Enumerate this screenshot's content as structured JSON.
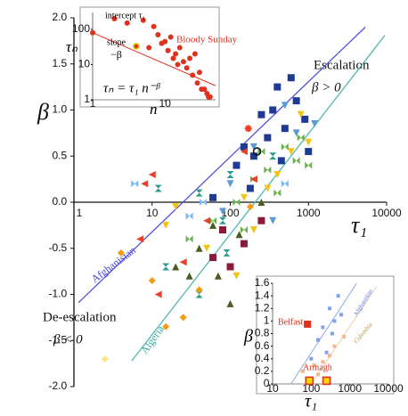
{
  "chart_data": [
    {
      "type": "scatter",
      "xscale": "log",
      "xlim": [
        1,
        10000
      ],
      "ylim": [
        -2,
        2
      ],
      "xticks": [
        1,
        10,
        100,
        1000,
        10000
      ],
      "yticks": [
        {
          "value": 2,
          "label": "2.0"
        },
        1.5,
        {
          "value": 1,
          "label": "1.0"
        },
        0.5,
        {
          "value": 0,
          "label": "0.0"
        },
        -0.5,
        {
          "value": -1,
          "label": "-1.0"
        },
        -1.5,
        {
          "value": -2,
          "label": "-2.0"
        }
      ],
      "x_label": "τ₁",
      "y_label": "β",
      "annotations": {
        "escalation": "Escalation",
        "beta_pos": "β > 0",
        "deescalation": "De-escalation",
        "beta_neg": "β < 0",
        "afghanistan": "Afghanistan",
        "algeria": "Algeria"
      },
      "lines": [
        {
          "color": "#5050d8",
          "x": [
            1.14,
            5350
          ],
          "values": [
            -1.09,
            1.9
          ]
        },
        {
          "color": "#4fb8b0",
          "x": [
            5.5,
            9500
          ],
          "values": [
            -1.72,
            1.81
          ]
        }
      ],
      "series": [
        {
          "marker": "square",
          "color": "#1f3a93",
          "x": [
            400,
            600,
            350,
            700,
            500,
            200,
            150,
            900,
            300,
            250,
            1000,
            120,
            450,
            180,
            60
          ],
          "values": [
            1.25,
            1.35,
            1.0,
            1.1,
            0.8,
            0.5,
            0.6,
            0.9,
            0.7,
            0.95,
            0.55,
            0.4,
            0.45,
            0.15,
            0.05
          ]
        },
        {
          "marker": "square",
          "color": "#8b1a3a",
          "x": [
            100,
            60,
            150,
            250,
            80
          ],
          "values": [
            -0.7,
            -0.6,
            -0.45,
            -0.2,
            -0.3
          ]
        },
        {
          "marker": "tri-down",
          "color": "#f2c418",
          "x": [
            20,
            15,
            400,
            800,
            600,
            150,
            300,
            200,
            1000,
            50,
            120
          ],
          "values": [
            -0.05,
            -0.25,
            0.3,
            0.95,
            0.55,
            0.05,
            0.15,
            -0.3,
            0.65,
            -0.5,
            -0.8
          ]
        },
        {
          "marker": "tri-down",
          "color": "#5b9bd5",
          "x": [
            200,
            500,
            100,
            700,
            80,
            350,
            1200
          ],
          "values": [
            0.6,
            1.05,
            0.2,
            0.75,
            -0.1,
            -0.2,
            0.85
          ]
        },
        {
          "marker": "bowtie",
          "color": "#6ab04c",
          "x": [
            300,
            500,
            200,
            120,
            800,
            60,
            1000,
            400,
            150,
            30,
            700,
            250
          ],
          "values": [
            0.35,
            0.6,
            0.25,
            0.0,
            0.7,
            -0.2,
            0.4,
            0.1,
            -0.3,
            -0.4,
            0.45,
            0.55
          ]
        },
        {
          "marker": "hourglass",
          "color": "#2a9d8f",
          "x": [
            100,
            350,
            80,
            40,
            12,
            15,
            40,
            90
          ],
          "values": [
            0.3,
            0.5,
            -0.2,
            0.1,
            0.15,
            -0.7,
            -1.0,
            -0.55
          ]
        },
        {
          "marker": "tri-up",
          "color": "#4a5d23",
          "x": [
            20,
            40,
            70,
            130,
            100,
            250,
            60,
            30
          ],
          "values": [
            -0.7,
            -0.5,
            -0.8,
            -0.35,
            -1.1,
            0.0,
            -0.25,
            -0.8
          ]
        },
        {
          "marker": "tri-left",
          "color": "#e8402a",
          "x": [
            8,
            10,
            25,
            12,
            50,
            150,
            200,
            7
          ],
          "values": [
            0.2,
            0.3,
            -0.65,
            -1.0,
            -0.2,
            0.55,
            0.25,
            -0.4
          ]
        },
        {
          "marker": "diamond",
          "color": "#f39c12",
          "x": [
            4,
            10,
            25,
            40,
            180,
            15
          ],
          "values": [
            -0.55,
            -0.85,
            -1.25,
            -0.95,
            -0.05,
            -1.35
          ]
        },
        {
          "marker": "bowtie",
          "color": "#74b9ff",
          "x": [
            6,
            30,
            45,
            500
          ],
          "values": [
            0.2,
            -0.15,
            0.0,
            0.2
          ]
        },
        {
          "marker": "diamond",
          "color": "#f8e38a",
          "x": [
            2.5
          ],
          "values": [
            -1.7
          ]
        },
        {
          "marker": "circle-open",
          "color": "#111111",
          "x": [
            220
          ],
          "values": [
            0.55
          ]
        },
        {
          "marker": "asterisk",
          "color": "#e8402a",
          "x": [
            170
          ],
          "values": [
            0.8
          ]
        }
      ]
    },
    {
      "type": "scatter",
      "xscale": "log",
      "yscale": "log",
      "xlim": [
        1,
        50
      ],
      "ylim": [
        1,
        300
      ],
      "xticks": [
        1,
        10
      ],
      "yticks": [
        1,
        10,
        100
      ],
      "x_label": "n",
      "y_label": "τₙ",
      "annotations": {
        "intercept": "intercept τ₁",
        "slope": "slope",
        "neg_beta": "−β",
        "bloody": "Bloody Sunday",
        "formula": "τₙ = τ₁ n⁻ᵝ"
      },
      "lines": [
        {
          "color": "#e0301e",
          "x": [
            1,
            50
          ],
          "values": [
            80,
            2.5
          ]
        }
      ],
      "series": [
        {
          "marker": "circle",
          "color": "#e0301e",
          "x": [
            1,
            2,
            3,
            4,
            5,
            6,
            7,
            8,
            9,
            10,
            11,
            12,
            13,
            14,
            15,
            16,
            18,
            20,
            22,
            24,
            26,
            28,
            30,
            32,
            35,
            38,
            40,
            42
          ],
          "values": [
            80,
            200,
            150,
            33,
            180,
            30,
            120,
            70,
            40,
            45,
            25,
            60,
            15,
            20,
            10,
            30,
            12,
            8,
            15,
            5,
            20,
            3,
            6,
            2,
            2,
            1.5,
            1.2,
            1.2
          ]
        },
        {
          "marker": "circle-open",
          "color": "#e8c400",
          "x": [
            4
          ],
          "values": [
            33
          ]
        }
      ]
    },
    {
      "type": "scatter",
      "xscale": "log",
      "xlim": [
        10,
        10000
      ],
      "ylim": [
        0,
        1.6
      ],
      "xticks": [
        10,
        100,
        1000,
        10000
      ],
      "yticks": [
        0,
        0.2,
        0.4,
        0.6,
        0.8,
        1,
        1.2,
        1.4,
        1.6
      ],
      "x_label": "τ₁",
      "y_label": "β",
      "annotations": {
        "belfast": "Belfast",
        "armagh": "Armagh",
        "afghanistan": "Afghanistan",
        "colombia": "Colombia"
      },
      "lines": [
        {
          "color": "#8fa8e8",
          "x": [
            30,
            1500
          ],
          "values": [
            0,
            1.6
          ]
        },
        {
          "color": "#e8d0a8",
          "x": [
            100,
            5000
          ],
          "values": [
            0,
            1.55
          ]
        }
      ],
      "series": [
        {
          "marker": "square",
          "color": "#7fa2e8",
          "x": [
            200,
            300,
            500,
            150,
            400,
            250,
            600,
            100,
            350
          ],
          "values": [
            0.9,
            1.2,
            1.4,
            0.7,
            1.0,
            0.5,
            1.1,
            0.4,
            0.8
          ]
        },
        {
          "marker": "square",
          "color": "#f4b98a",
          "x": [
            120,
            200,
            400,
            60,
            300,
            700,
            150
          ],
          "values": [
            0.3,
            0.35,
            0.6,
            0.2,
            0.45,
            0.75,
            0.15
          ]
        },
        {
          "marker": "big-square",
          "color": "#e0301e",
          "x": [
            80
          ],
          "values": [
            0.95
          ]
        },
        {
          "marker": "big-square-open",
          "color": "#e0301e",
          "x": [
            90,
            250
          ],
          "values": [
            0.05,
            0.05
          ]
        }
      ]
    }
  ]
}
